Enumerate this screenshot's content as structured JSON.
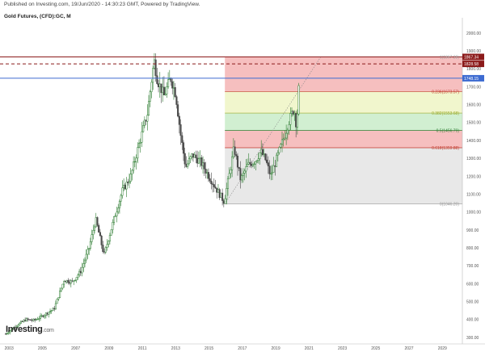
{
  "header": {
    "published": "Published on Investing.com, 19/Jun/2020 - 14:30:23 GMT, Powered by TradingView.",
    "title": "Gold Futures, (CFD):GC, M"
  },
  "logo": {
    "brand": "Investing",
    "suffix": ".com"
  },
  "colors": {
    "candle_up": "#2e7d32",
    "candle_down": "#4a4a4a",
    "resistance": "#8b1a1a",
    "level_1748": "#3d6bd1",
    "fib_red": "#f4b4b4",
    "fib_yellow": "#eef5c4",
    "fib_green": "#c9ecc9",
    "fib_gray": "#e4e4e4"
  },
  "price_tags": [
    {
      "label": "1867.34",
      "value": 1867.34,
      "color": "#8b1a1a"
    },
    {
      "label": "1828.58",
      "value": 1828.58,
      "color": "#8b1a1a"
    },
    {
      "label": "1748.15",
      "value": 1748.15,
      "color": "#3d6bd1"
    }
  ],
  "fib_labels": [
    {
      "text": "1(1867.28)",
      "value": 1867.28,
      "color": "#999999"
    },
    {
      "text": "0.236(1673.57)",
      "value": 1673.57,
      "color": "#c0392b"
    },
    {
      "text": "0.382(1553.68)",
      "value": 1553.68,
      "color": "#9aaa2a"
    },
    {
      "text": "0.5(1456.79)",
      "value": 1456.79,
      "color": "#2e7d32"
    },
    {
      "text": "0.618(1359.88)",
      "value": 1359.88,
      "color": "#c0392b"
    },
    {
      "text": "0(1046.20)",
      "value": 1046.2,
      "color": "#999999"
    }
  ],
  "chart_data": {
    "type": "candlestick",
    "title": "Gold Futures, (CFD):GC, M",
    "y_axis_ticks": [
      "2000.00",
      "1900.00",
      "1800.00",
      "1700.00",
      "1600.00",
      "1500.00",
      "1400.00",
      "1300.00",
      "1200.00",
      "1100.00",
      "1000.00",
      "900.00",
      "800.00",
      "700.00",
      "600.00",
      "500.00",
      "400.00",
      "300.00"
    ],
    "x_axis_ticks": [
      "2003",
      "2005",
      "2007",
      "2009",
      "2011",
      "2013",
      "2015",
      "2017",
      "2019",
      "2021",
      "2023",
      "2025",
      "2027",
      "2029"
    ],
    "ylim": [
      300,
      2050
    ],
    "xlim": [
      2002.7,
      2030.2
    ],
    "price_path": [
      [
        2002.8,
        320
      ],
      [
        2003.5,
        370
      ],
      [
        2004.0,
        400
      ],
      [
        2004.5,
        395
      ],
      [
        2005.0,
        420
      ],
      [
        2005.7,
        460
      ],
      [
        2006.3,
        620
      ],
      [
        2006.8,
        610
      ],
      [
        2007.3,
        670
      ],
      [
        2007.8,
        800
      ],
      [
        2008.2,
        960
      ],
      [
        2008.7,
        760
      ],
      [
        2009.2,
        930
      ],
      [
        2009.8,
        1120
      ],
      [
        2010.3,
        1200
      ],
      [
        2010.8,
        1380
      ],
      [
        2011.3,
        1550
      ],
      [
        2011.7,
        1850
      ],
      [
        2011.9,
        1740
      ],
      [
        2012.3,
        1650
      ],
      [
        2012.7,
        1750
      ],
      [
        2013.0,
        1660
      ],
      [
        2013.3,
        1430
      ],
      [
        2013.6,
        1250
      ],
      [
        2014.0,
        1320
      ],
      [
        2014.5,
        1280
      ],
      [
        2015.0,
        1200
      ],
      [
        2015.5,
        1120
      ],
      [
        2015.9,
        1060
      ],
      [
        2016.2,
        1200
      ],
      [
        2016.5,
        1360
      ],
      [
        2016.9,
        1180
      ],
      [
        2017.3,
        1260
      ],
      [
        2017.8,
        1290
      ],
      [
        2018.1,
        1340
      ],
      [
        2018.4,
        1290
      ],
      [
        2018.7,
        1200
      ],
      [
        2019.1,
        1310
      ],
      [
        2019.5,
        1420
      ],
      [
        2019.8,
        1510
      ],
      [
        2020.1,
        1580
      ],
      [
        2020.25,
        1480
      ],
      [
        2020.4,
        1710
      ],
      [
        2020.46,
        1748
      ]
    ],
    "horizontal_levels": [
      {
        "value": 1867.34,
        "style": "solid",
        "color": "#8b1a1a"
      },
      {
        "value": 1828.58,
        "style": "dashed",
        "color": "#8b1a1a"
      },
      {
        "value": 1748.15,
        "style": "solid",
        "color": "#3d6bd1"
      }
    ],
    "fibonacci_retracement": {
      "x_start": 2015.95,
      "x_end": 2020.95,
      "levels": [
        {
          "ratio": 1,
          "value": 1867.28
        },
        {
          "ratio": 0.236,
          "value": 1673.57
        },
        {
          "ratio": 0.382,
          "value": 1553.68
        },
        {
          "ratio": 0.5,
          "value": 1456.79
        },
        {
          "ratio": 0.618,
          "value": 1359.88
        },
        {
          "ratio": 0,
          "value": 1046.2
        }
      ],
      "trend_line": [
        [
          2015.95,
          1046.2
        ],
        [
          2021.7,
          1867.28
        ]
      ]
    }
  }
}
